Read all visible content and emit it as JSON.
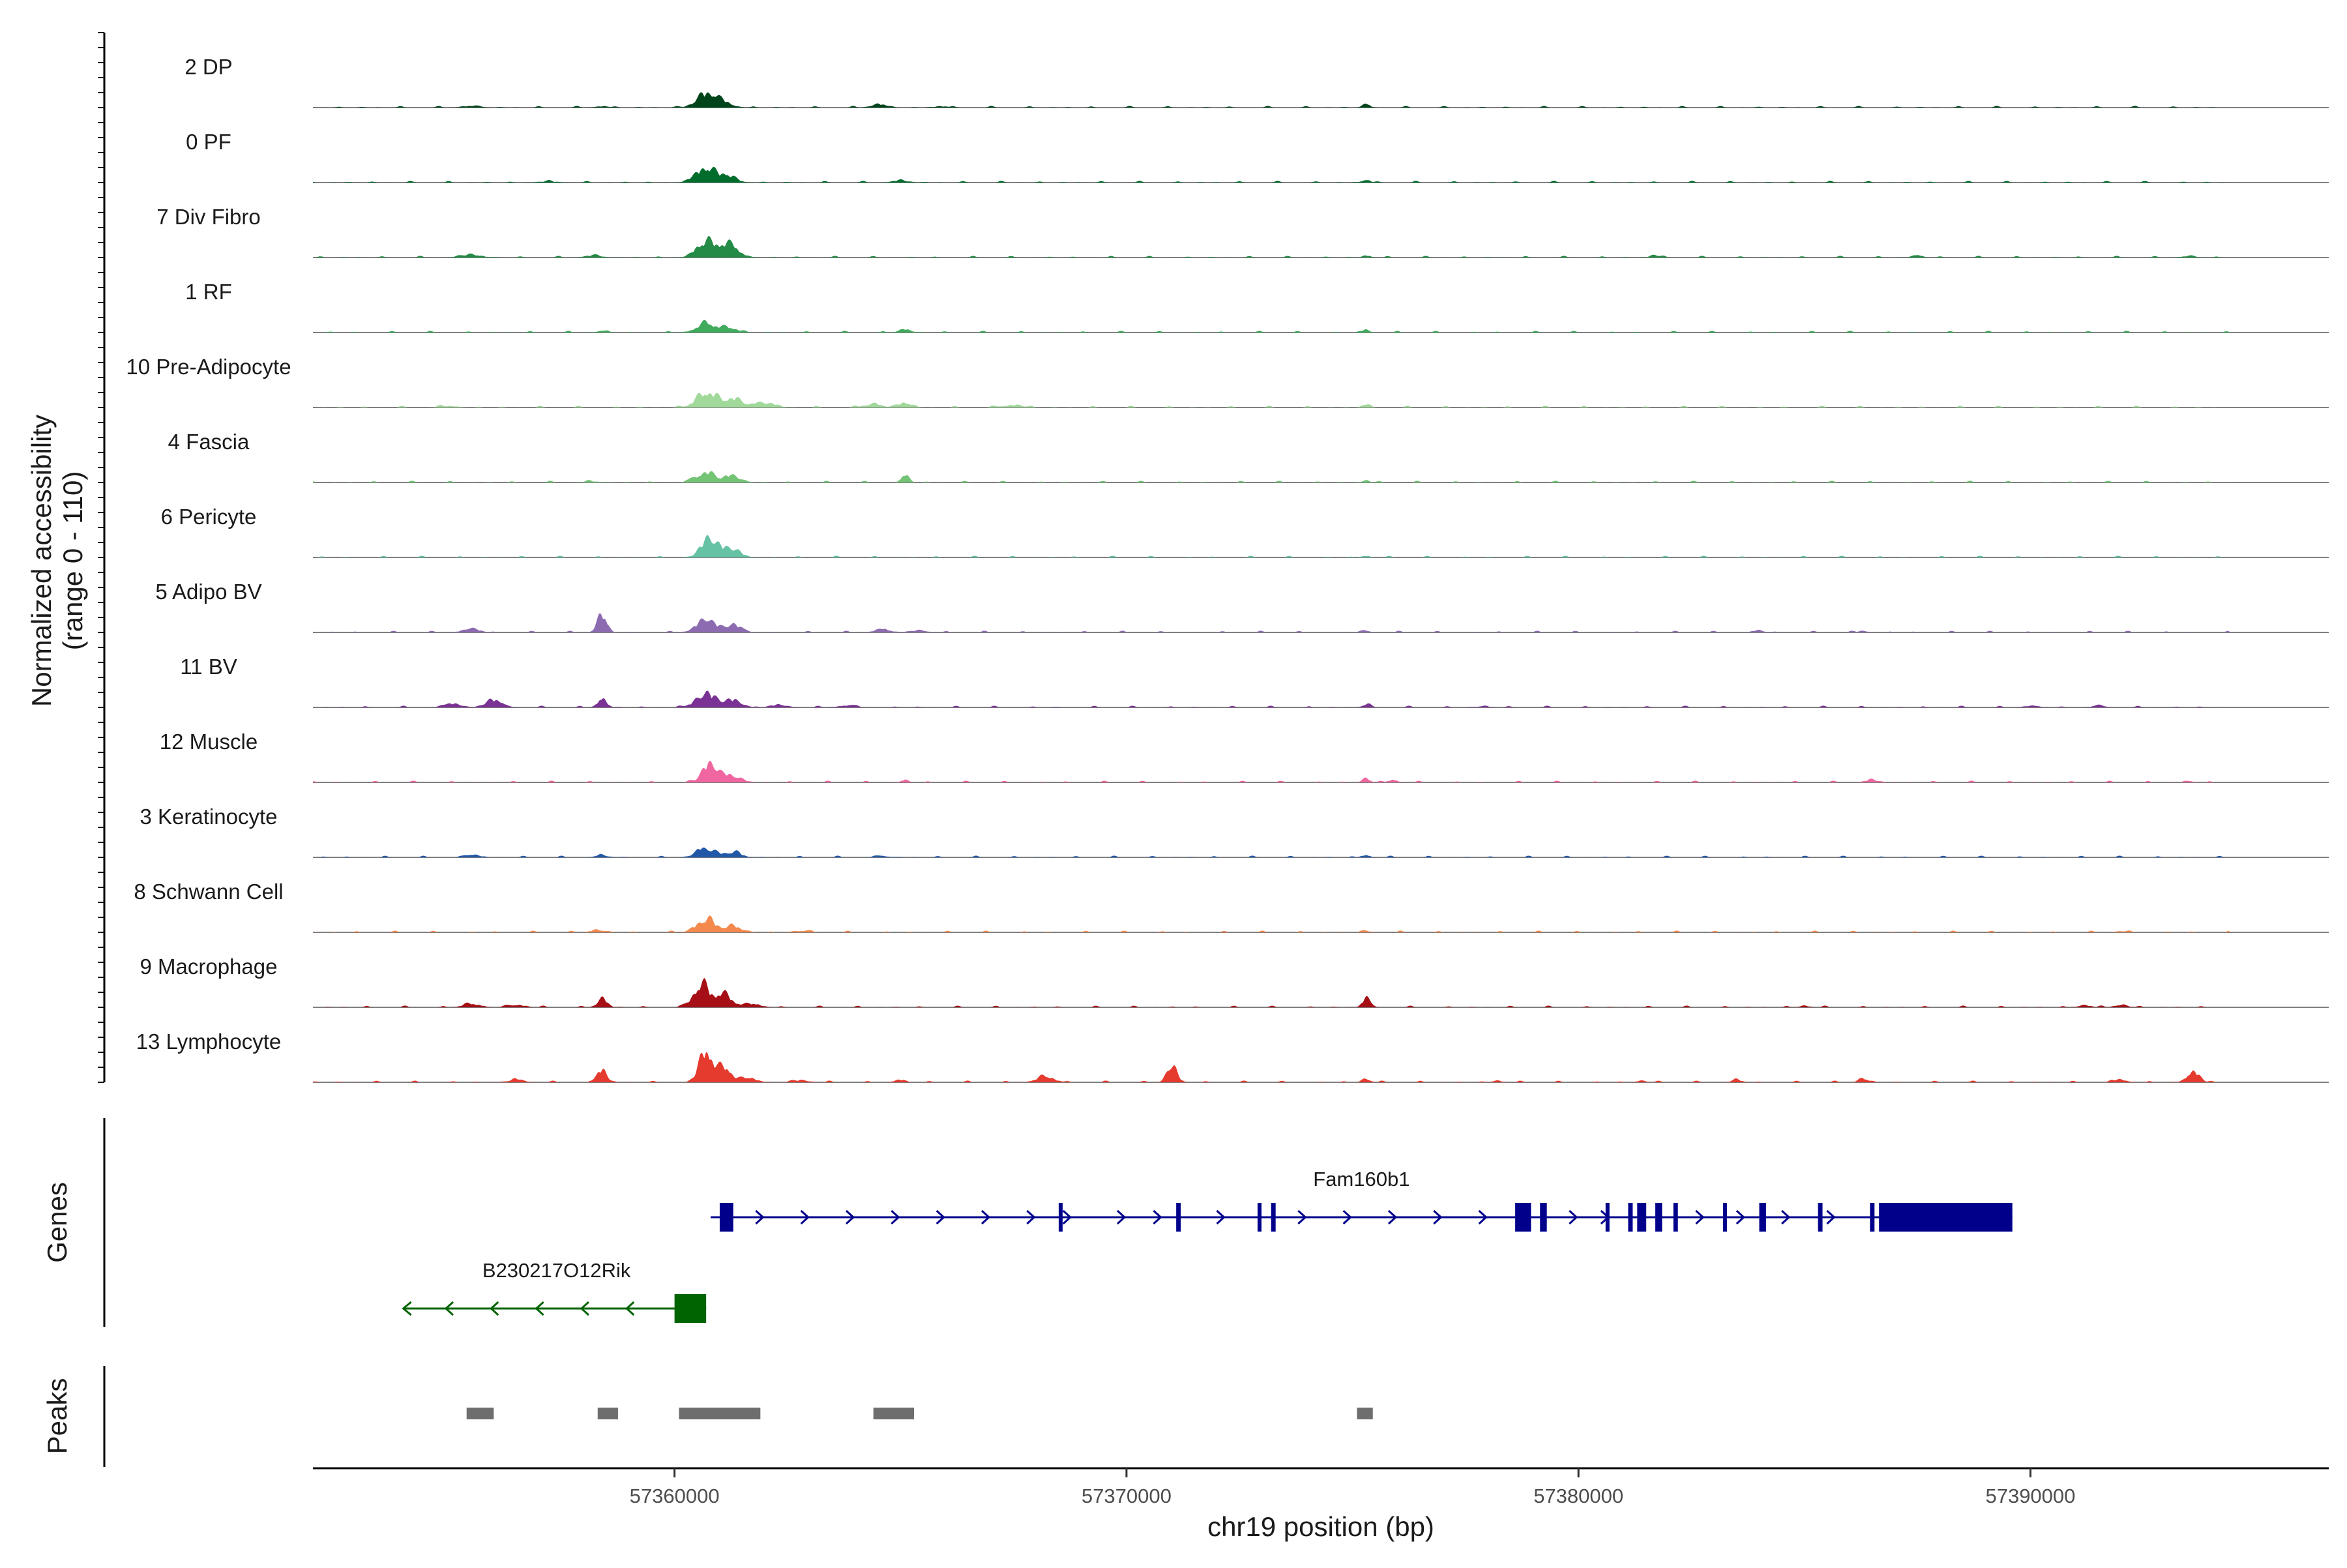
{
  "chart_data": {
    "type": "area",
    "title": "",
    "chromosome": "chr19",
    "xlabel": "chr19 position (bp)",
    "ylabel_line1": "Normalized accessibility",
    "ylabel_line2": "(range 0 - 110)",
    "yrange": [
      0,
      110
    ],
    "xlim": [
      57352000,
      57396600
    ],
    "x_ticks": [
      {
        "value": 57360000,
        "label": "57360000"
      },
      {
        "value": 57370000,
        "label": "57370000"
      },
      {
        "value": 57380000,
        "label": "57380000"
      },
      {
        "value": 57390000,
        "label": "57390000"
      }
    ],
    "panel_labels": {
      "genes": "Genes",
      "peaks": "Peaks"
    },
    "series": [
      {
        "name": "2 DP",
        "color": "#00441b",
        "peaks": [
          [
            57360700,
            0.55,
            300
          ],
          [
            57361100,
            0.2,
            250
          ],
          [
            57364500,
            0.15,
            200
          ],
          [
            57355500,
            0.07,
            250
          ],
          [
            57358400,
            0.05,
            200
          ],
          [
            57365900,
            0.05,
            200
          ],
          [
            57375300,
            0.12,
            120
          ]
        ]
      },
      {
        "name": "0 PF",
        "color": "#006d2c",
        "peaks": [
          [
            57360700,
            0.6,
            300
          ],
          [
            57361200,
            0.25,
            250
          ],
          [
            57365000,
            0.08,
            250
          ],
          [
            57375300,
            0.12,
            120
          ],
          [
            57357200,
            0.04,
            300
          ]
        ]
      },
      {
        "name": "7 Div Fibro",
        "color": "#238b45",
        "peaks": [
          [
            57360700,
            0.6,
            300
          ],
          [
            57361200,
            0.5,
            300
          ],
          [
            57355500,
            0.12,
            300
          ],
          [
            57358200,
            0.08,
            250
          ],
          [
            57375300,
            0.08,
            120
          ],
          [
            57381700,
            0.1,
            150
          ],
          [
            57387500,
            0.1,
            150
          ],
          [
            57393500,
            0.06,
            200
          ]
        ]
      },
      {
        "name": "1 RF",
        "color": "#41ab5d",
        "peaks": [
          [
            57360700,
            0.35,
            300
          ],
          [
            57361200,
            0.2,
            250
          ],
          [
            57365100,
            0.12,
            200
          ],
          [
            57375300,
            0.1,
            120
          ],
          [
            57358400,
            0.05,
            200
          ]
        ]
      },
      {
        "name": "10 Pre-Adipocyte",
        "color": "#a1d99b",
        "peaks": [
          [
            57360700,
            0.6,
            300
          ],
          [
            57361300,
            0.35,
            300
          ],
          [
            57362000,
            0.2,
            300
          ],
          [
            57365100,
            0.2,
            200
          ],
          [
            57364400,
            0.15,
            250
          ],
          [
            57375300,
            0.12,
            120
          ],
          [
            57367500,
            0.1,
            300
          ],
          [
            57355000,
            0.06,
            250
          ]
        ]
      },
      {
        "name": "4 Fascia",
        "color": "#74c476",
        "peaks": [
          [
            57360700,
            0.4,
            300
          ],
          [
            57361300,
            0.25,
            250
          ],
          [
            57365100,
            0.3,
            120
          ],
          [
            57375300,
            0.08,
            120
          ],
          [
            57358200,
            0.04,
            250
          ]
        ]
      },
      {
        "name": "6 Pericyte",
        "color": "#66c2a4",
        "peaks": [
          [
            57360800,
            0.75,
            280
          ],
          [
            57361300,
            0.3,
            250
          ],
          [
            57375300,
            0.06,
            120
          ]
        ]
      },
      {
        "name": "5 Adipo BV",
        "color": "#8c6bb1",
        "peaks": [
          [
            57358400,
            0.7,
            150
          ],
          [
            57360700,
            0.5,
            300
          ],
          [
            57361300,
            0.3,
            250
          ],
          [
            57355500,
            0.15,
            250
          ],
          [
            57364600,
            0.12,
            250
          ],
          [
            57365400,
            0.08,
            250
          ],
          [
            57375300,
            0.08,
            120
          ],
          [
            57384000,
            0.08,
            150
          ],
          [
            57386300,
            0.06,
            150
          ]
        ]
      },
      {
        "name": "11 BV",
        "color": "#7a3294",
        "peaks": [
          [
            57360700,
            0.55,
            300
          ],
          [
            57361300,
            0.3,
            250
          ],
          [
            57356000,
            0.3,
            250
          ],
          [
            57355100,
            0.15,
            250
          ],
          [
            57358400,
            0.4,
            130
          ],
          [
            57362300,
            0.1,
            250
          ],
          [
            57363800,
            0.08,
            250
          ],
          [
            57375300,
            0.12,
            120
          ],
          [
            57377900,
            0.06,
            150
          ],
          [
            57390000,
            0.06,
            200
          ],
          [
            57391500,
            0.06,
            200
          ]
        ]
      },
      {
        "name": "12 Muscle",
        "color": "#f066a0",
        "peaks": [
          [
            57360800,
            0.75,
            250
          ],
          [
            57361300,
            0.25,
            250
          ],
          [
            57375300,
            0.15,
            120
          ],
          [
            57375900,
            0.12,
            120
          ],
          [
            57365100,
            0.08,
            120
          ],
          [
            57386500,
            0.1,
            200
          ],
          [
            57393500,
            0.05,
            150
          ]
        ]
      },
      {
        "name": "3 Keratinocyte",
        "color": "#2158a8",
        "peaks": [
          [
            57360700,
            0.35,
            300
          ],
          [
            57361300,
            0.2,
            250
          ],
          [
            57355500,
            0.12,
            200
          ],
          [
            57358400,
            0.08,
            200
          ],
          [
            57375300,
            0.1,
            120
          ],
          [
            57364600,
            0.05,
            250
          ]
        ]
      },
      {
        "name": "8 Schwann Cell",
        "color": "#f4894e",
        "peaks": [
          [
            57360700,
            0.5,
            300
          ],
          [
            57361300,
            0.25,
            250
          ],
          [
            57358300,
            0.1,
            200
          ],
          [
            57362800,
            0.06,
            250
          ],
          [
            57375300,
            0.06,
            120
          ],
          [
            57392000,
            0.05,
            150
          ]
        ]
      },
      {
        "name": "9 Macrophage",
        "color": "#a50f15",
        "peaks": [
          [
            57360600,
            0.9,
            250
          ],
          [
            57361100,
            0.5,
            250
          ],
          [
            57361700,
            0.15,
            250
          ],
          [
            57358400,
            0.35,
            150
          ],
          [
            57355500,
            0.15,
            250
          ],
          [
            57356500,
            0.1,
            250
          ],
          [
            57375300,
            0.35,
            120
          ],
          [
            57385000,
            0.06,
            150
          ],
          [
            57391200,
            0.08,
            200
          ],
          [
            57392000,
            0.1,
            200
          ]
        ]
      },
      {
        "name": "13 Lymphocyte",
        "color": "#e53a2e",
        "peaks": [
          [
            57360700,
            1.3,
            200
          ],
          [
            57361100,
            0.6,
            200
          ],
          [
            57361600,
            0.2,
            250
          ],
          [
            57358400,
            0.5,
            150
          ],
          [
            57371000,
            0.7,
            150
          ],
          [
            57368200,
            0.25,
            250
          ],
          [
            57375300,
            0.15,
            120
          ],
          [
            57383500,
            0.1,
            150
          ],
          [
            57386300,
            0.15,
            150
          ],
          [
            57393600,
            0.45,
            180
          ],
          [
            57392000,
            0.1,
            200
          ],
          [
            57356500,
            0.1,
            250
          ],
          [
            57362800,
            0.08,
            250
          ],
          [
            57365000,
            0.1,
            150
          ],
          [
            57378200,
            0.06,
            150
          ],
          [
            57381400,
            0.06,
            150
          ]
        ]
      }
    ],
    "genes": [
      {
        "name": "Fam160b1",
        "strand": "+",
        "color": "#00008b",
        "start": 57360800,
        "end": 57389600,
        "intron_arrows": [
          57361900,
          57362900,
          57363900,
          57364900,
          57365900,
          57366900,
          57367900,
          57368700,
          57369900,
          57370700,
          57372100,
          57373900,
          57374900,
          57375900,
          57376900,
          57377900,
          57379900,
          57380600,
          57382700,
          57383600,
          57384600,
          57385600
        ],
        "exons": [
          [
            57361000,
            57361300,
            1.0
          ],
          [
            57368500,
            57368550,
            1.0
          ],
          [
            57371100,
            57371200,
            1.0
          ],
          [
            57372900,
            57372950,
            1.0
          ],
          [
            57373200,
            57373300,
            1.0
          ],
          [
            57378600,
            57378950,
            1.0
          ],
          [
            57379150,
            57379300,
            1.0
          ],
          [
            57380600,
            57380650,
            1.0
          ],
          [
            57381100,
            57381200,
            1.0
          ],
          [
            57381300,
            57381500,
            1.0
          ],
          [
            57381700,
            57381850,
            1.0
          ],
          [
            57382100,
            57382200,
            1.0
          ],
          [
            57383200,
            57383250,
            1.0
          ],
          [
            57384000,
            57384150,
            1.0
          ],
          [
            57385300,
            57385400,
            1.0
          ],
          [
            57386450,
            57386550,
            1.0
          ],
          [
            57386650,
            57389600,
            1.0
          ]
        ]
      },
      {
        "name": "B230217O12Rik",
        "strand": "-",
        "color": "#006400",
        "start": 57354000,
        "end": 57360700,
        "intron_arrows": [
          57355000,
          57356000,
          57357000,
          57358000,
          57359000
        ],
        "exons": [
          [
            57360000,
            57360700,
            1.0
          ]
        ]
      }
    ],
    "peaks": [
      [
        57355400,
        57356000
      ],
      [
        57358300,
        57358750
      ],
      [
        57360100,
        57361900
      ],
      [
        57364400,
        57365300
      ],
      [
        57375100,
        57375450
      ]
    ]
  }
}
